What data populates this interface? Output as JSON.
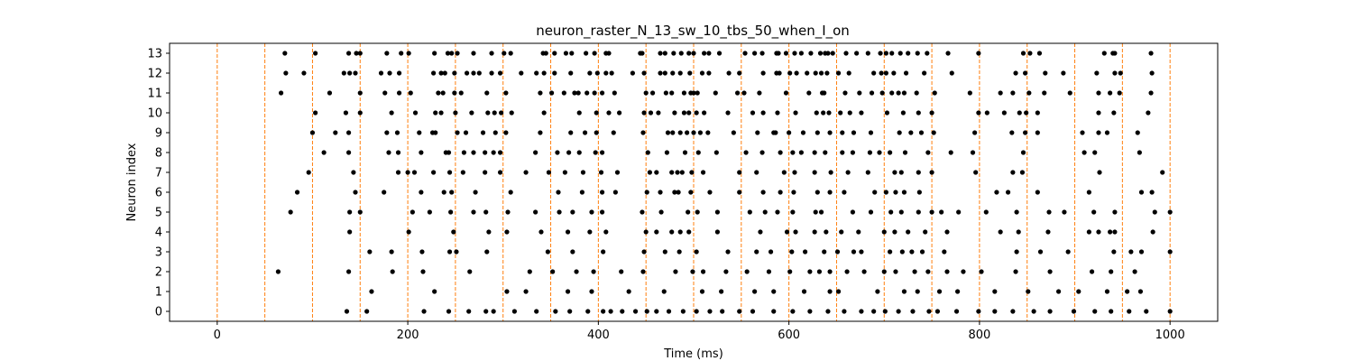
{
  "chart_data": {
    "type": "scatter",
    "title": "neuron_raster_N_13_sw_10_tbs_50_when_I_on",
    "xlabel": "Time (ms)",
    "ylabel": "Neuron index",
    "xlim": [
      -50,
      1050
    ],
    "ylim": [
      -0.5,
      13.5
    ],
    "xticks": [
      0,
      200,
      400,
      600,
      800,
      1000
    ],
    "xtick_labels": [
      "0",
      "200",
      "400",
      "600",
      "800",
      "1000"
    ],
    "yticks": [
      0,
      1,
      2,
      3,
      4,
      5,
      6,
      7,
      8,
      9,
      10,
      11,
      12,
      13
    ],
    "ytick_labels": [
      "0",
      "1",
      "2",
      "3",
      "4",
      "5",
      "6",
      "7",
      "8",
      "9",
      "10",
      "11",
      "12",
      "13"
    ],
    "grid": false,
    "marker_color": "#000000",
    "vline_color": "#ff7f0e",
    "vlines_x": [
      0,
      50,
      100,
      150,
      200,
      250,
      300,
      350,
      400,
      450,
      500,
      550,
      600,
      650,
      700,
      750,
      800,
      850,
      900,
      950,
      1000
    ],
    "series": [
      {
        "neuron": 13,
        "times": [
          71,
          103,
          138,
          146,
          150,
          178,
          193,
          201,
          228,
          242,
          246,
          252,
          269,
          288,
          301,
          308,
          342,
          345,
          354,
          366,
          372,
          387,
          396,
          408,
          411,
          444,
          446,
          465,
          470,
          479,
          487,
          495,
          500,
          511,
          516,
          527,
          554,
          564,
          572,
          587,
          589,
          597,
          606,
          613,
          623,
          633,
          638,
          641,
          646,
          660,
          671,
          683,
          696,
          702,
          708,
          717,
          725,
          735,
          745,
          767,
          799,
          846,
          853,
          863,
          931,
          940,
          942,
          980
        ]
      },
      {
        "neuron": 12,
        "times": [
          72,
          91,
          133,
          139,
          145,
          172,
          181,
          191,
          227,
          235,
          239,
          249,
          262,
          269,
          275,
          288,
          297,
          319,
          335,
          343,
          354,
          371,
          391,
          399,
          408,
          414,
          436,
          448,
          465,
          470,
          478,
          486,
          496,
          509,
          516,
          537,
          548,
          573,
          587,
          590,
          601,
          608,
          619,
          628,
          634,
          640,
          652,
          663,
          689,
          697,
          702,
          710,
          723,
          742,
          771,
          838,
          848,
          869,
          888,
          923,
          942,
          948,
          981
        ]
      },
      {
        "neuron": 11,
        "times": [
          67,
          118,
          150,
          176,
          191,
          203,
          232,
          237,
          249,
          256,
          283,
          303,
          339,
          351,
          364,
          375,
          379,
          388,
          396,
          404,
          417,
          450,
          457,
          471,
          477,
          490,
          497,
          500,
          504,
          523,
          546,
          553,
          569,
          597,
          621,
          635,
          637,
          659,
          674,
          687,
          698,
          708,
          715,
          721,
          734,
          753,
          790,
          822,
          835,
          852,
          868,
          895,
          925,
          937,
          947,
          980
        ]
      },
      {
        "neuron": 10,
        "times": [
          103,
          135,
          150,
          183,
          208,
          229,
          235,
          250,
          267,
          284,
          291,
          298,
          309,
          343,
          380,
          398,
          411,
          422,
          448,
          455,
          463,
          480,
          490,
          495,
          503,
          511,
          536,
          562,
          573,
          588,
          607,
          629,
          636,
          642,
          654,
          664,
          676,
          703,
          720,
          736,
          750,
          799,
          808,
          826,
          842,
          849,
          861,
          925,
          941,
          977
        ]
      },
      {
        "neuron": 9,
        "times": [
          100,
          124,
          138,
          178,
          189,
          212,
          226,
          229,
          252,
          261,
          279,
          292,
          303,
          339,
          371,
          386,
          398,
          416,
          447,
          473,
          478,
          486,
          493,
          500,
          507,
          515,
          542,
          567,
          584,
          586,
          600,
          615,
          630,
          643,
          656,
          668,
          686,
          716,
          728,
          739,
          752,
          795,
          834,
          848,
          861,
          908,
          925,
          934,
          966
        ]
      },
      {
        "neuron": 8,
        "times": [
          112,
          138,
          180,
          190,
          214,
          240,
          243,
          259,
          269,
          281,
          290,
          297,
          334,
          357,
          369,
          380,
          397,
          404,
          452,
          472,
          491,
          505,
          524,
          555,
          572,
          591,
          604,
          613,
          627,
          638,
          656,
          667,
          685,
          695,
          706,
          722,
          746,
          770,
          793,
          846,
          910,
          921,
          968
        ]
      },
      {
        "neuron": 7,
        "times": [
          96,
          143,
          190,
          200,
          207,
          227,
          244,
          258,
          281,
          297,
          324,
          348,
          365,
          384,
          403,
          420,
          454,
          461,
          477,
          483,
          488,
          498,
          510,
          548,
          566,
          595,
          606,
          627,
          644,
          662,
          683,
          711,
          718,
          736,
          750,
          796,
          835,
          845,
          926,
          992
        ]
      },
      {
        "neuron": 6,
        "times": [
          84,
          145,
          175,
          214,
          238,
          246,
          271,
          308,
          358,
          383,
          404,
          418,
          451,
          465,
          480,
          484,
          497,
          517,
          548,
          573,
          591,
          605,
          630,
          643,
          658,
          690,
          702,
          712,
          721,
          737,
          818,
          830,
          861,
          915,
          970,
          981
        ]
      },
      {
        "neuron": 5,
        "times": [
          77,
          139,
          150,
          205,
          223,
          245,
          269,
          282,
          305,
          334,
          359,
          373,
          393,
          404,
          446,
          466,
          494,
          504,
          525,
          559,
          575,
          588,
          604,
          628,
          634,
          667,
          686,
          707,
          718,
          736,
          750,
          760,
          778,
          807,
          839,
          873,
          889,
          920,
          942,
          984,
          1000
        ]
      },
      {
        "neuron": 4,
        "times": [
          139,
          201,
          248,
          285,
          304,
          340,
          368,
          391,
          408,
          450,
          461,
          477,
          486,
          495,
          525,
          570,
          598,
          607,
          627,
          639,
          655,
          673,
          700,
          711,
          725,
          743,
          766,
          822,
          841,
          872,
          915,
          925,
          937,
          942,
          982
        ]
      },
      {
        "neuron": 3,
        "times": [
          160,
          183,
          215,
          244,
          251,
          283,
          347,
          373,
          405,
          448,
          470,
          485,
          503,
          536,
          566,
          581,
          603,
          617,
          637,
          651,
          668,
          676,
          706,
          719,
          729,
          740,
          763,
          839,
          864,
          893,
          941,
          959,
          970,
          1000
        ]
      },
      {
        "neuron": 2,
        "times": [
          64,
          138,
          184,
          216,
          265,
          328,
          352,
          377,
          395,
          424,
          447,
          481,
          499,
          510,
          534,
          556,
          579,
          601,
          622,
          632,
          643,
          661,
          679,
          700,
          712,
          732,
          746,
          766,
          783,
          802,
          838,
          874,
          918,
          938,
          963
        ]
      },
      {
        "neuron": 1,
        "times": [
          162,
          228,
          304,
          324,
          368,
          393,
          432,
          469,
          509,
          529,
          564,
          584,
          616,
          643,
          652,
          693,
          721,
          735,
          758,
          777,
          816,
          851,
          883,
          904,
          934,
          955,
          969
        ]
      },
      {
        "neuron": 0,
        "times": [
          136,
          157,
          217,
          243,
          264,
          282,
          290,
          312,
          335,
          355,
          370,
          389,
          405,
          413,
          425,
          439,
          451,
          461,
          474,
          489,
          503,
          517,
          530,
          548,
          562,
          584,
          604,
          622,
          641,
          658,
          676,
          689,
          701,
          715,
          730,
          747,
          756,
          776,
          799,
          816,
          835,
          857,
          874,
          899,
          921,
          938,
          957,
          975,
          1000
        ]
      }
    ]
  }
}
